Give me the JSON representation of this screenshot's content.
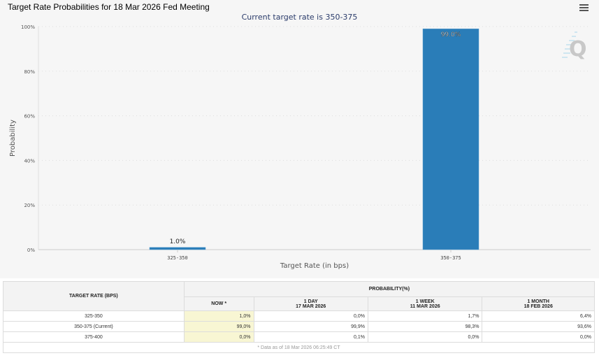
{
  "header": {
    "title": "Target Rate Probabilities for 18 Mar 2026 Fed Meeting",
    "subtitle": "Current target rate is 350-375",
    "menu_icon": "hamburger-menu-icon",
    "watermark_icon": "quikstrike-q-logo"
  },
  "chart_data": {
    "type": "bar",
    "title": "Target Rate Probabilities for 18 Mar 2026 Fed Meeting",
    "subtitle": "Current target rate is 350-375",
    "categories": [
      "325-350",
      "350-375"
    ],
    "values": [
      1.0,
      99.0
    ],
    "data_labels": [
      "1.0%",
      "99.0%"
    ],
    "xlabel": "Target Rate (in bps)",
    "ylabel": "Probability",
    "ylim": [
      0,
      100
    ],
    "yticks": [
      0,
      20,
      40,
      60,
      80,
      100
    ],
    "ytick_labels": [
      "0%",
      "20%",
      "40%",
      "60%",
      "80%",
      "100%"
    ],
    "grid": true,
    "bar_color": "#2a7db8"
  },
  "table": {
    "rate_header": "TARGET RATE (BPS)",
    "prob_header": "PROBABILITY(%)",
    "columns": [
      {
        "line1": "NOW",
        "line2": "",
        "marker": "*"
      },
      {
        "line1": "1 DAY",
        "line2": "17 MAR 2026"
      },
      {
        "line1": "1 WEEK",
        "line2": "11 MAR 2026"
      },
      {
        "line1": "1 MONTH",
        "line2": "18 FEB 2026"
      }
    ],
    "rows": [
      {
        "rate": "325-350",
        "values": [
          "1,0%",
          "0,0%",
          "1,7%",
          "6,4%"
        ]
      },
      {
        "rate": "350-375 (Current)",
        "values": [
          "99,0%",
          "99,9%",
          "98,3%",
          "93,6%"
        ]
      },
      {
        "rate": "375-400",
        "values": [
          "0,0%",
          "0,1%",
          "0,0%",
          "0,0%"
        ]
      }
    ],
    "footnote": "* Data as of 18 Mar 2026 06:25:49 CT"
  }
}
